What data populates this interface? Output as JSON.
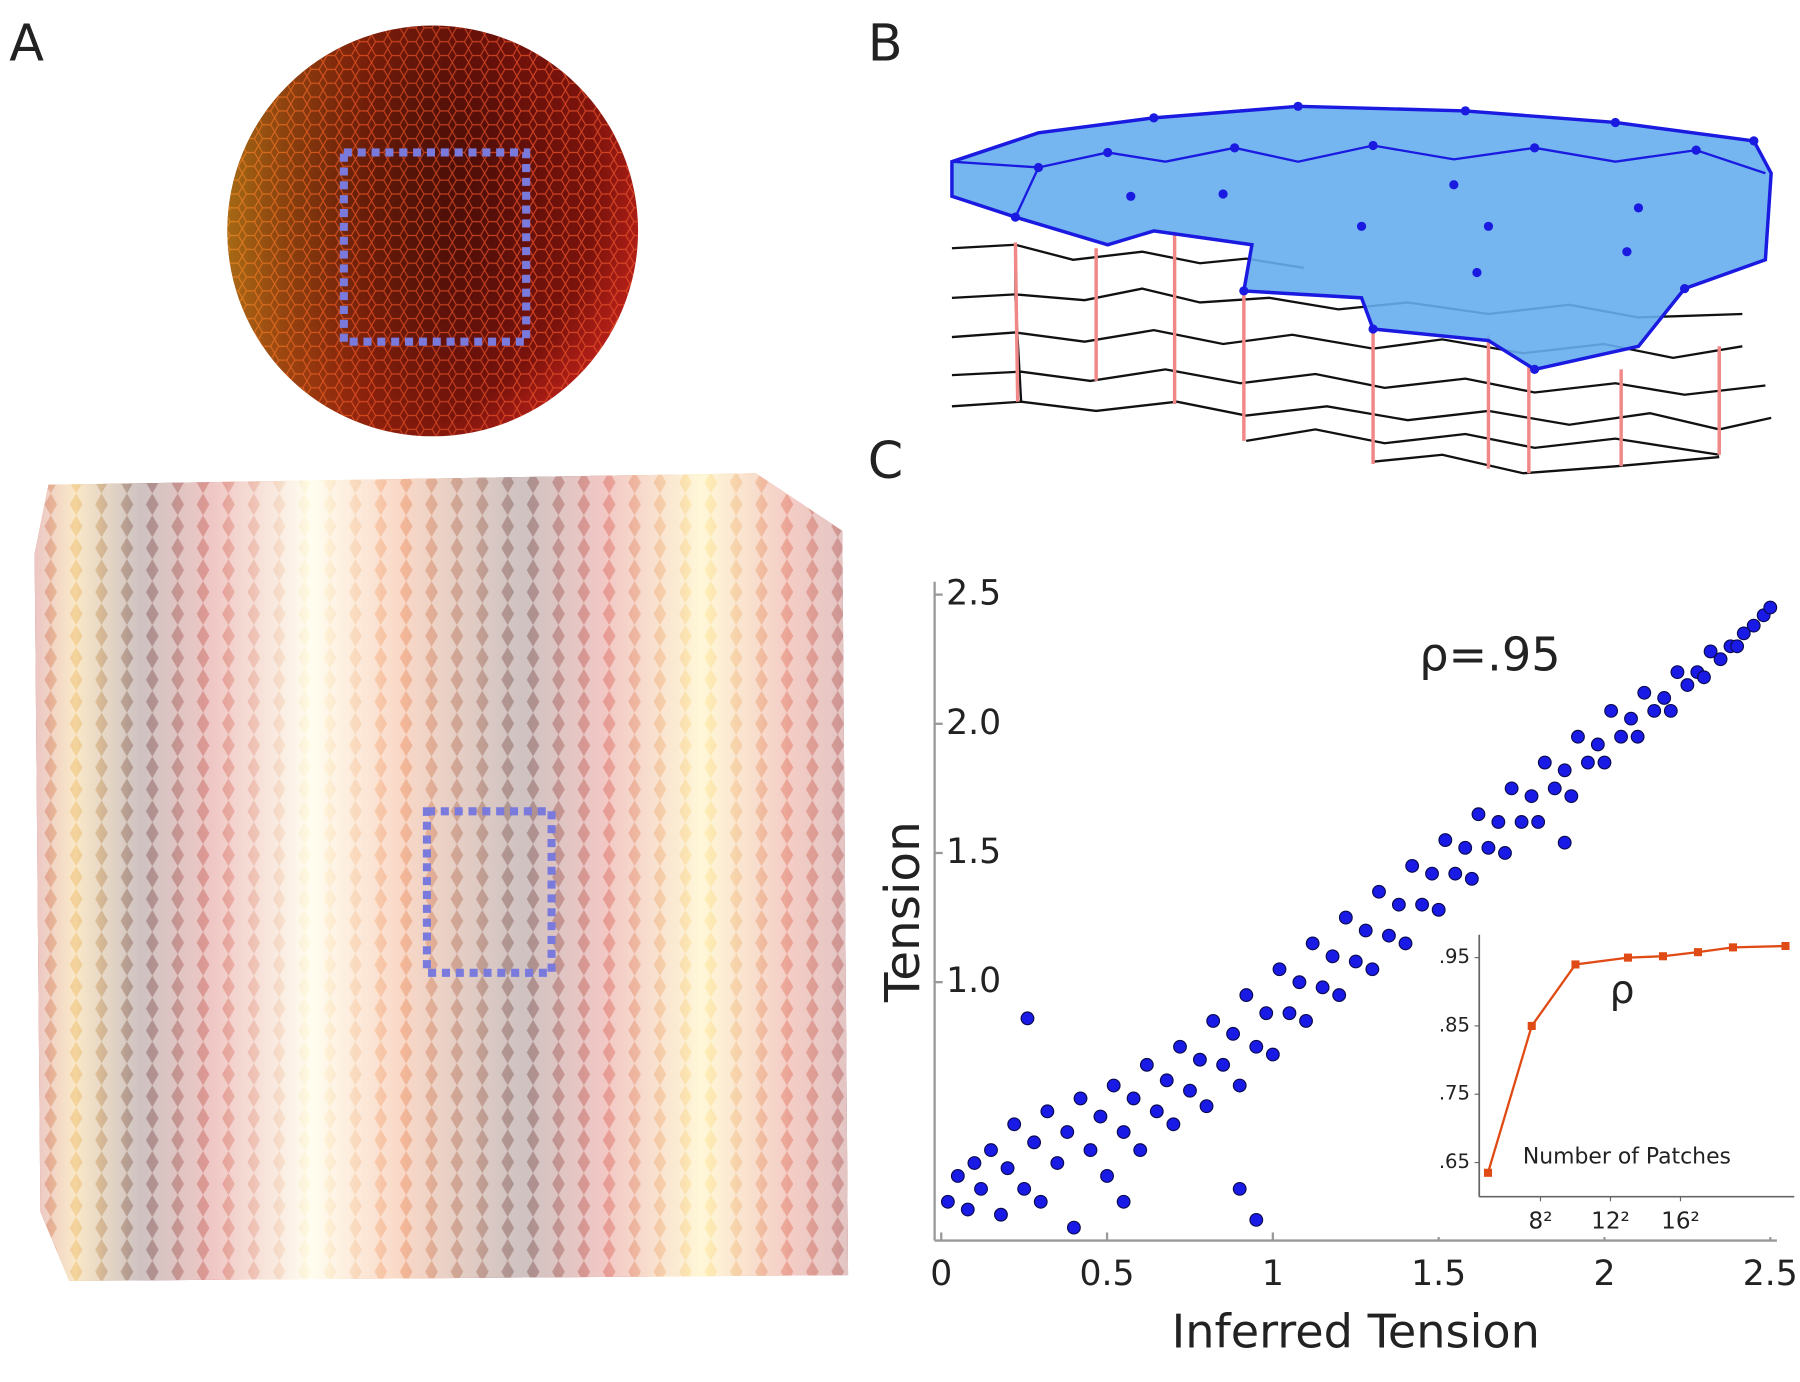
{
  "panel_labels": [
    "A",
    "B",
    "C"
  ],
  "chart_data": [
    {
      "type": "scatter",
      "xlabel": "Inferred Tension",
      "ylabel": "Tension",
      "annotation": "ρ=.95",
      "color": "#1a1ae6",
      "x": [
        0.02,
        0.05,
        0.08,
        0.1,
        0.12,
        0.15,
        0.18,
        0.2,
        0.22,
        0.25,
        0.28,
        0.3,
        0.32,
        0.35,
        0.38,
        0.4,
        0.42,
        0.45,
        0.48,
        0.5,
        0.52,
        0.55,
        0.58,
        0.6,
        0.62,
        0.65,
        0.68,
        0.7,
        0.72,
        0.75,
        0.78,
        0.8,
        0.82,
        0.85,
        0.88,
        0.9,
        0.92,
        0.95,
        0.98,
        1.0,
        1.02,
        1.05,
        1.08,
        1.1,
        1.12,
        1.15,
        1.18,
        1.2,
        1.22,
        1.25,
        1.28,
        1.3,
        1.32,
        1.35,
        1.38,
        1.4,
        1.42,
        1.45,
        1.48,
        1.5,
        1.52,
        1.55,
        1.58,
        1.6,
        1.62,
        1.65,
        1.68,
        1.7,
        1.72,
        1.75,
        1.78,
        1.8,
        1.82,
        1.85,
        1.88,
        1.9,
        1.92,
        1.95,
        1.98,
        2.0,
        2.02,
        2.05,
        2.08,
        2.1,
        2.12,
        2.15,
        2.18,
        2.2,
        2.22,
        2.25,
        2.28,
        2.3,
        2.32,
        2.35,
        2.38,
        2.4,
        2.42,
        2.45,
        2.48,
        2.5,
        0.26,
        0.9,
        0.95,
        0.55,
        1.88
      ],
      "values": [
        0.15,
        0.25,
        0.12,
        0.3,
        0.2,
        0.35,
        0.1,
        0.28,
        0.45,
        0.2,
        0.38,
        0.15,
        0.5,
        0.3,
        0.42,
        0.05,
        0.55,
        0.35,
        0.48,
        0.25,
        0.6,
        0.42,
        0.55,
        0.35,
        0.68,
        0.5,
        0.62,
        0.45,
        0.75,
        0.58,
        0.7,
        0.52,
        0.85,
        0.68,
        0.8,
        0.6,
        0.95,
        0.75,
        0.88,
        0.72,
        1.05,
        0.88,
        1.0,
        0.85,
        1.15,
        0.98,
        1.1,
        0.95,
        1.25,
        1.08,
        1.2,
        1.05,
        1.35,
        1.18,
        1.3,
        1.15,
        1.45,
        1.3,
        1.42,
        1.28,
        1.55,
        1.42,
        1.52,
        1.4,
        1.65,
        1.52,
        1.62,
        1.5,
        1.75,
        1.62,
        1.72,
        1.62,
        1.85,
        1.75,
        1.82,
        1.72,
        1.95,
        1.85,
        1.92,
        1.85,
        2.05,
        1.95,
        2.02,
        1.95,
        2.12,
        2.05,
        2.1,
        2.05,
        2.2,
        2.15,
        2.2,
        2.18,
        2.28,
        2.25,
        2.3,
        2.3,
        2.35,
        2.38,
        2.42,
        2.45,
        0.86,
        0.2,
        0.08,
        0.15,
        1.54
      ],
      "xlim": [
        -0.02,
        2.52
      ],
      "ylim": [
        0,
        2.55
      ],
      "xticks": [
        0,
        0.5,
        1,
        1.5,
        2,
        2.5
      ],
      "yticks": [
        {
          "value": 1,
          "label": "1.0"
        },
        1.5,
        {
          "value": 2,
          "label": "2.0"
        },
        2.5
      ]
    },
    {
      "type": "line",
      "xlabel": "Number of Patches",
      "annotation": "ρ",
      "color": "#e04a14",
      "x": [
        5,
        7.5,
        10,
        13,
        15,
        17,
        19,
        22
      ],
      "values": [
        0.635,
        0.85,
        0.94,
        0.95,
        0.952,
        0.958,
        0.965,
        0.967
      ],
      "xlim": [
        4.5,
        22.5
      ],
      "ylim": [
        0.6,
        0.975
      ],
      "xticks": [
        {
          "value": 8,
          "label": "8²"
        },
        {
          "value": 12,
          "label": "12²"
        },
        {
          "value": 16,
          "label": "16²"
        }
      ],
      "yticks": [
        {
          "value": 0.65,
          "label": ".65"
        },
        {
          "value": 0.75,
          "label": ".75"
        },
        {
          "value": 0.85,
          "label": ".85"
        },
        {
          "value": 0.95,
          "label": ".95"
        }
      ]
    }
  ]
}
